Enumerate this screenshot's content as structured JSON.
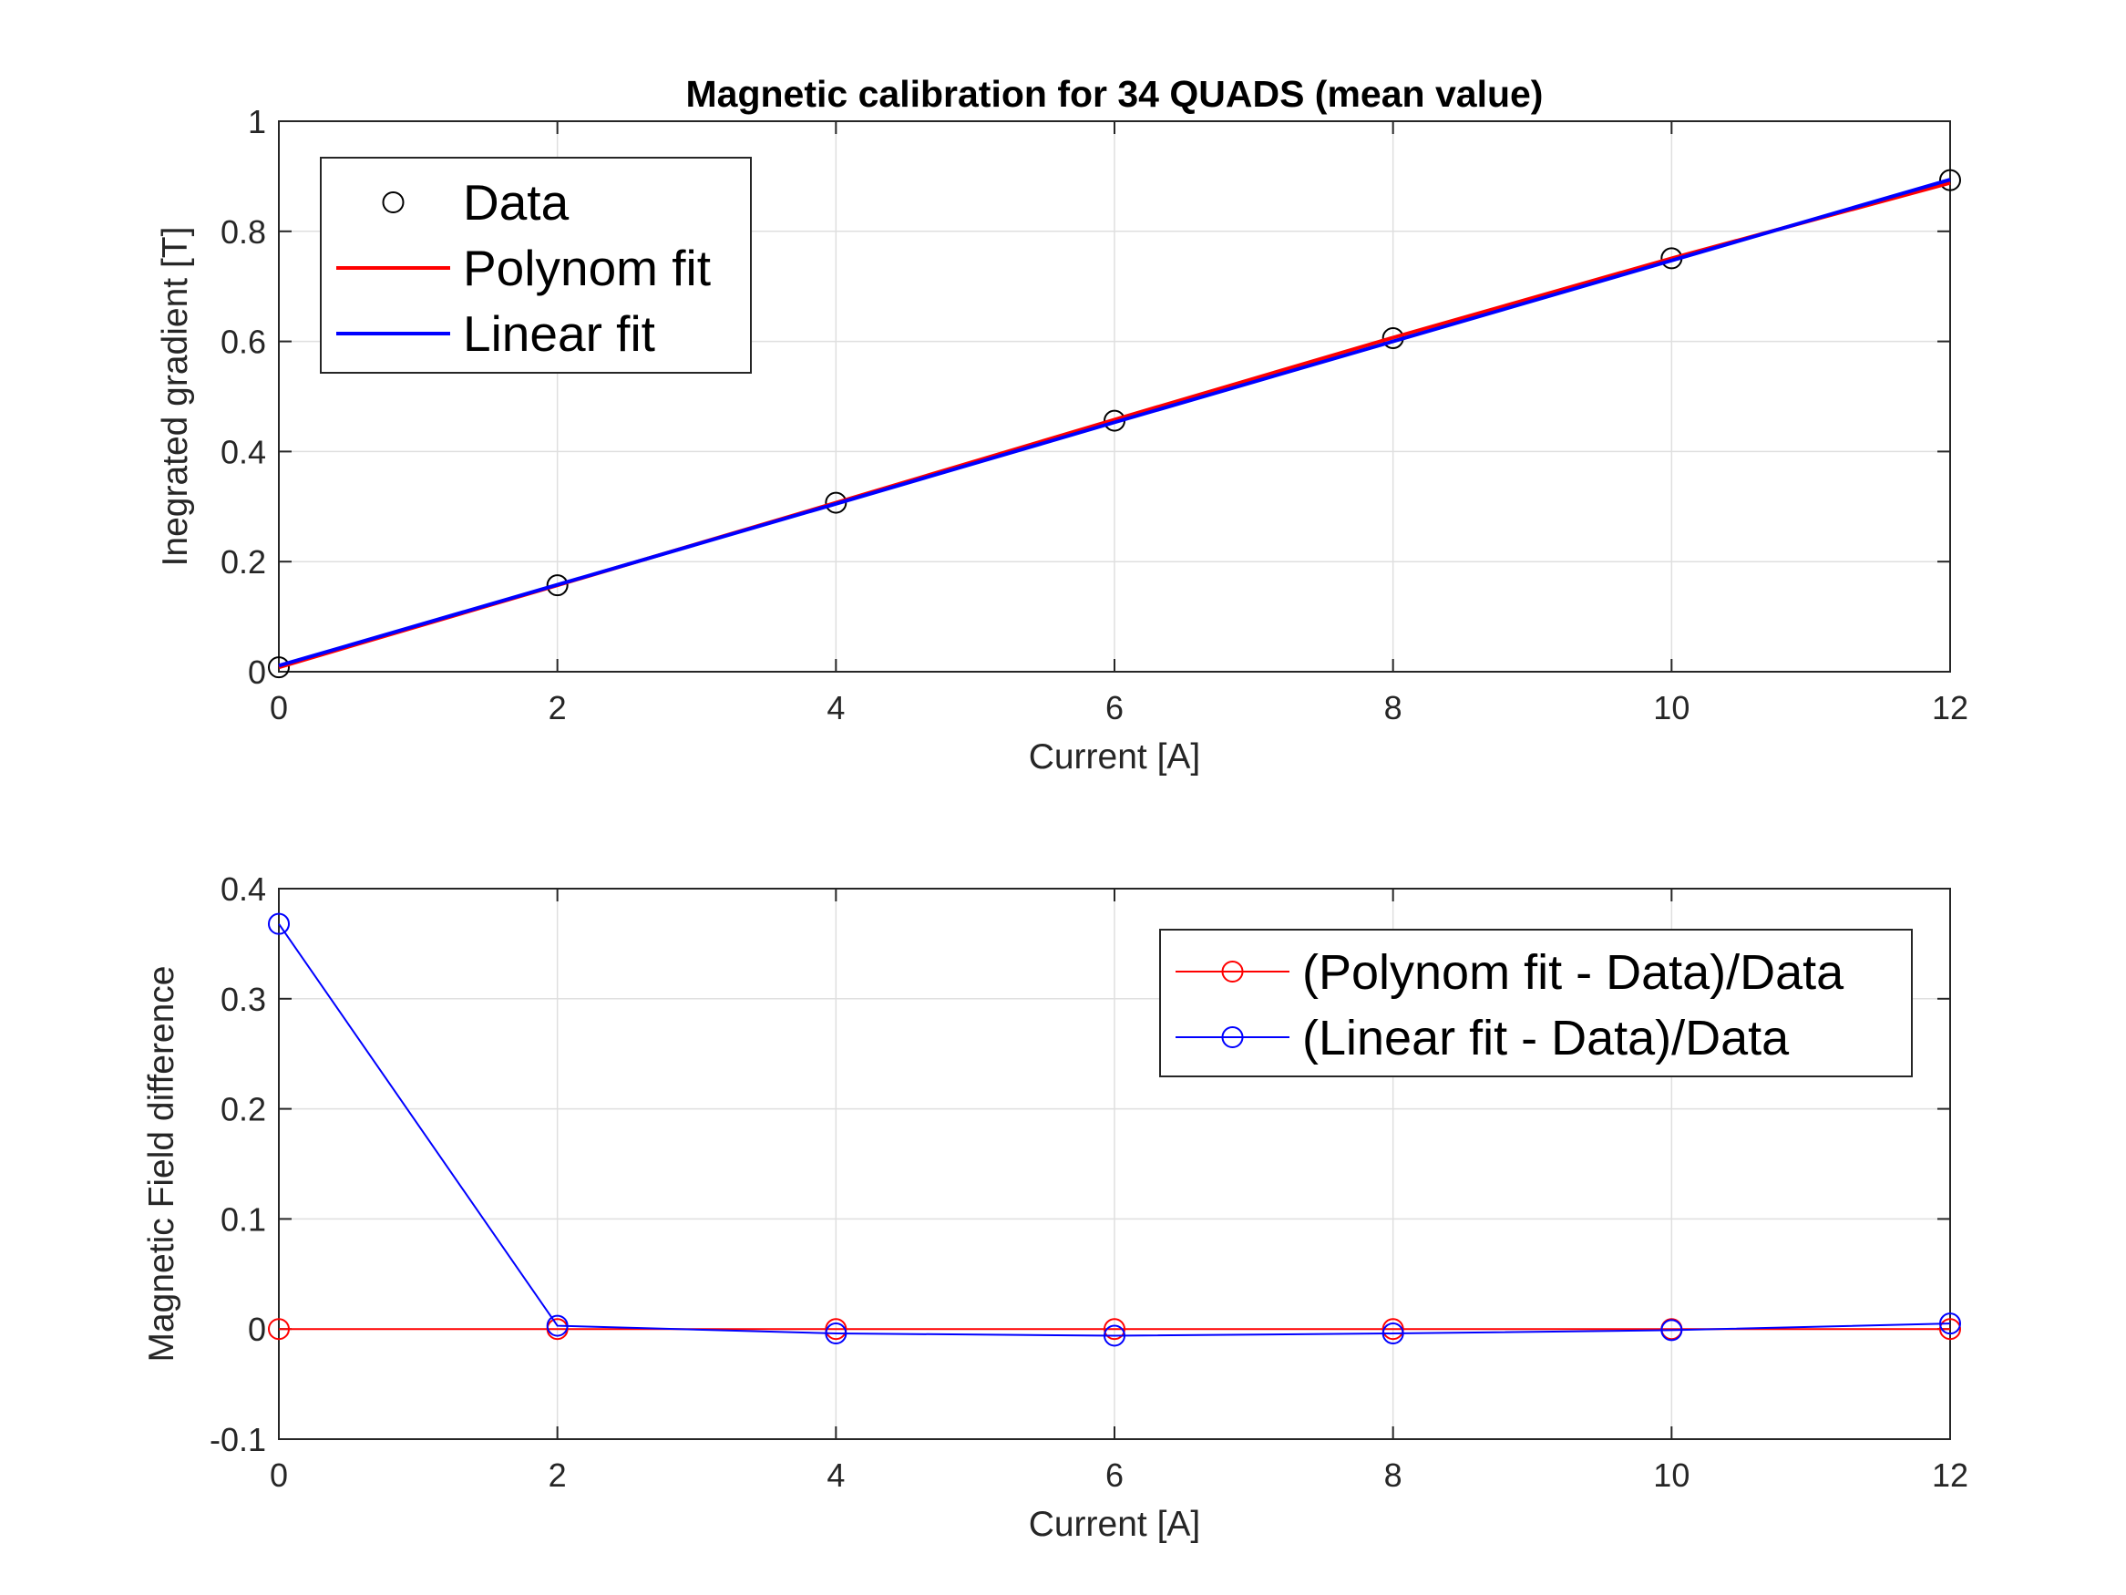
{
  "chart_data": [
    {
      "type": "line",
      "title": "Magnetic calibration for 34 QUADS (mean value)",
      "xlabel": "Current [A]",
      "ylabel": "Inegrated gradient [T]",
      "xlim": [
        0,
        12
      ],
      "ylim": [
        0,
        1
      ],
      "xticks": [
        "0",
        "2",
        "4",
        "6",
        "8",
        "10",
        "12"
      ],
      "yticks": [
        "0",
        "0.2",
        "0.4",
        "0.6",
        "0.8",
        "1"
      ],
      "grid": true,
      "legend_position": "top-left",
      "series": [
        {
          "name": "Data",
          "style": "markers",
          "color": "#000000",
          "x": [
            0,
            2,
            4,
            6,
            8,
            10,
            12
          ],
          "y": [
            0.008,
            0.157,
            0.307,
            0.456,
            0.606,
            0.751,
            0.893
          ]
        },
        {
          "name": "Polynom fit",
          "style": "line",
          "color": "#ff0000",
          "x": [
            0,
            2,
            4,
            6,
            8,
            10,
            12
          ],
          "y": [
            0.008,
            0.157,
            0.307,
            0.458,
            0.607,
            0.751,
            0.888
          ]
        },
        {
          "name": "Linear fit",
          "style": "line",
          "color": "#0000ff",
          "x": [
            0,
            2,
            4,
            6,
            8,
            10,
            12
          ],
          "y": [
            0.011,
            0.158,
            0.305,
            0.453,
            0.6,
            0.747,
            0.894
          ]
        }
      ]
    },
    {
      "type": "line",
      "title": "",
      "xlabel": "Current [A]",
      "ylabel": "Magnetic Field difference",
      "xlim": [
        0,
        12
      ],
      "ylim": [
        -0.1,
        0.4
      ],
      "xticks": [
        "0",
        "2",
        "4",
        "6",
        "8",
        "10",
        "12"
      ],
      "yticks": [
        "-0.1",
        "0",
        "0.1",
        "0.2",
        "0.3",
        "0.4"
      ],
      "grid": true,
      "legend_position": "top-right",
      "series": [
        {
          "name": "(Polynom fit - Data)/Data",
          "style": "line-markers",
          "color": "#ff0000",
          "x": [
            0,
            2,
            4,
            6,
            8,
            10,
            12
          ],
          "y": [
            0.0,
            0.0,
            0.0,
            0.0,
            0.0,
            0.0,
            0.0
          ]
        },
        {
          "name": "(Linear fit - Data)/Data",
          "style": "line-markers",
          "color": "#0000ff",
          "x": [
            0,
            2,
            4,
            6,
            8,
            10,
            12
          ],
          "y": [
            0.368,
            0.003,
            -0.004,
            -0.006,
            -0.004,
            -0.001,
            0.005
          ]
        }
      ]
    }
  ]
}
